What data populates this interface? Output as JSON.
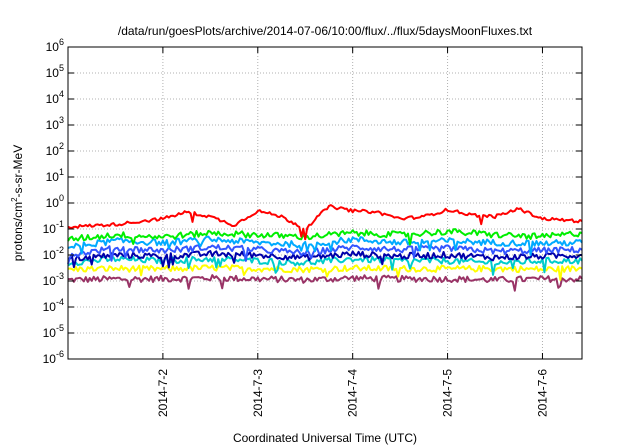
{
  "chart_data": {
    "type": "line",
    "title": "/data/run/goesPlots/archive/2014-07-06/10:00/flux/../flux/5daysMoonFluxes.txt",
    "xlabel": "Coordinated Universal Time (UTC)",
    "ylabel": {
      "base": "protons/cm",
      "sup": "2",
      "rest": "-s-sr-MeV"
    },
    "yscale": "log",
    "ylim": [
      1e-06,
      1000000.0
    ],
    "grid": true,
    "legend": "none",
    "x_range": [
      "2014-07-01T00:00",
      "2014-07-06T10:00"
    ],
    "x_ticks": [
      {
        "label": "2014-7-2",
        "t": "2014-07-02T00:00"
      },
      {
        "label": "2014-7-3",
        "t": "2014-07-03T00:00"
      },
      {
        "label": "2014-7-4",
        "t": "2014-07-04T00:00"
      },
      {
        "label": "2014-7-5",
        "t": "2014-07-05T00:00"
      },
      {
        "label": "2014-7-6",
        "t": "2014-07-06T00:00"
      }
    ],
    "y_ticks": [
      {
        "base": "10",
        "exp": "6"
      },
      {
        "base": "10",
        "exp": "5"
      },
      {
        "base": "10",
        "exp": "4"
      },
      {
        "base": "10",
        "exp": "3"
      },
      {
        "base": "10",
        "exp": "2"
      },
      {
        "base": "10",
        "exp": "1"
      },
      {
        "base": "10",
        "exp": "0"
      },
      {
        "base": "10",
        "exp": "-1"
      },
      {
        "base": "10",
        "exp": "-2"
      },
      {
        "base": "10",
        "exp": "-3"
      },
      {
        "base": "10",
        "exp": "-4"
      },
      {
        "base": "10",
        "exp": "-5"
      },
      {
        "base": "10",
        "exp": "-6"
      }
    ],
    "series": [
      {
        "color": "#ff0000",
        "t": [
          "2014-07-01T00:00",
          "2014-07-01T12:00",
          "2014-07-02T00:00",
          "2014-07-02T06:00",
          "2014-07-02T12:00",
          "2014-07-02T18:00",
          "2014-07-03T00:00",
          "2014-07-03T06:00",
          "2014-07-03T12:00",
          "2014-07-03T18:00",
          "2014-07-04T00:00",
          "2014-07-04T06:00",
          "2014-07-04T12:00",
          "2014-07-04T18:00",
          "2014-07-05T00:00",
          "2014-07-05T06:00",
          "2014-07-05T12:00",
          "2014-07-05T18:00",
          "2014-07-06T00:00",
          "2014-07-06T10:00"
        ],
        "values": [
          0.12,
          0.15,
          0.25,
          0.45,
          0.3,
          0.14,
          0.5,
          0.3,
          0.1,
          0.75,
          0.5,
          0.45,
          0.25,
          0.3,
          0.55,
          0.35,
          0.3,
          0.6,
          0.25,
          0.2
        ]
      },
      {
        "color": "#00ee00",
        "t": [
          "2014-07-01T00:00",
          "2014-07-01T12:00",
          "2014-07-02T00:00",
          "2014-07-02T12:00",
          "2014-07-03T00:00",
          "2014-07-03T12:00",
          "2014-07-04T00:00",
          "2014-07-04T12:00",
          "2014-07-05T00:00",
          "2014-07-05T12:00",
          "2014-07-06T00:00",
          "2014-07-06T10:00"
        ],
        "values": [
          0.04,
          0.06,
          0.05,
          0.07,
          0.06,
          0.05,
          0.07,
          0.06,
          0.08,
          0.06,
          0.05,
          0.07
        ]
      },
      {
        "color": "#00aaff",
        "t": [
          "2014-07-01T00:00",
          "2014-07-01T12:00",
          "2014-07-02T00:00",
          "2014-07-02T12:00",
          "2014-07-03T00:00",
          "2014-07-03T12:00",
          "2014-07-04T00:00",
          "2014-07-04T12:00",
          "2014-07-05T00:00",
          "2014-07-05T12:00",
          "2014-07-06T00:00",
          "2014-07-06T10:00"
        ],
        "values": [
          0.02,
          0.035,
          0.03,
          0.04,
          0.03,
          0.025,
          0.04,
          0.03,
          0.035,
          0.03,
          0.028,
          0.03
        ]
      },
      {
        "color": "#3355ff",
        "t": [
          "2014-07-01T00:00",
          "2014-07-01T12:00",
          "2014-07-02T00:00",
          "2014-07-02T12:00",
          "2014-07-03T00:00",
          "2014-07-03T12:00",
          "2014-07-04T00:00",
          "2014-07-04T12:00",
          "2014-07-05T00:00",
          "2014-07-05T12:00",
          "2014-07-06T00:00",
          "2014-07-06T10:00"
        ],
        "values": [
          0.01,
          0.018,
          0.015,
          0.02,
          0.016,
          0.012,
          0.02,
          0.016,
          0.018,
          0.014,
          0.015,
          0.016
        ]
      },
      {
        "color": "#0000aa",
        "t": [
          "2014-07-01T00:00",
          "2014-07-01T12:00",
          "2014-07-02T00:00",
          "2014-07-02T12:00",
          "2014-07-03T00:00",
          "2014-07-03T12:00",
          "2014-07-04T00:00",
          "2014-07-04T12:00",
          "2014-07-05T00:00",
          "2014-07-05T12:00",
          "2014-07-06T00:00",
          "2014-07-06T10:00"
        ],
        "values": [
          0.007,
          0.01,
          0.009,
          0.011,
          0.01,
          0.008,
          0.011,
          0.009,
          0.01,
          0.008,
          0.009,
          0.01
        ]
      },
      {
        "color": "#00cccc",
        "t": [
          "2014-07-01T00:00",
          "2014-07-01T12:00",
          "2014-07-02T00:00",
          "2014-07-02T12:00",
          "2014-07-03T00:00",
          "2014-07-03T12:00",
          "2014-07-04T00:00",
          "2014-07-04T12:00",
          "2014-07-05T00:00",
          "2014-07-05T12:00",
          "2014-07-06T00:00",
          "2014-07-06T10:00"
        ],
        "values": [
          0.005,
          0.007,
          0.006,
          0.007,
          0.006,
          0.005,
          0.007,
          0.006,
          0.006,
          0.005,
          0.006,
          0.006
        ]
      },
      {
        "color": "#ffff00",
        "t": [
          "2014-07-01T00:00",
          "2014-07-01T12:00",
          "2014-07-02T00:00",
          "2014-07-02T12:00",
          "2014-07-03T00:00",
          "2014-07-03T12:00",
          "2014-07-04T00:00",
          "2014-07-04T12:00",
          "2014-07-05T00:00",
          "2014-07-05T12:00",
          "2014-07-06T00:00",
          "2014-07-06T10:00"
        ],
        "values": [
          0.0028,
          0.003,
          0.0029,
          0.0032,
          0.003,
          0.0028,
          0.0031,
          0.003,
          0.0029,
          0.003,
          0.0028,
          0.003
        ]
      },
      {
        "color": "#993366",
        "t": [
          "2014-07-01T00:00",
          "2014-07-01T12:00",
          "2014-07-02T00:00",
          "2014-07-02T12:00",
          "2014-07-03T00:00",
          "2014-07-03T12:00",
          "2014-07-04T00:00",
          "2014-07-04T12:00",
          "2014-07-05T00:00",
          "2014-07-05T12:00",
          "2014-07-06T00:00",
          "2014-07-06T10:00"
        ],
        "values": [
          0.0011,
          0.0012,
          0.0012,
          0.0013,
          0.0012,
          0.0011,
          0.0013,
          0.0012,
          0.0012,
          0.0011,
          0.0012,
          0.0012
        ]
      }
    ]
  }
}
